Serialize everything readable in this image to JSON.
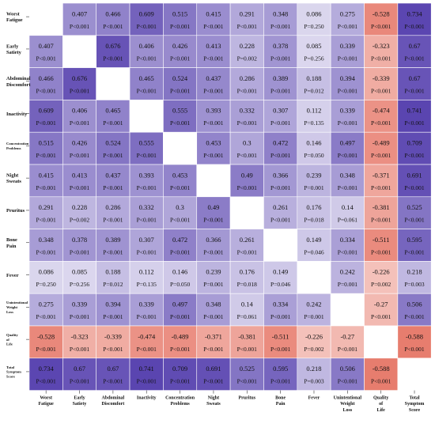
{
  "chart_data": {
    "type": "heatmap",
    "title": "",
    "variables": [
      [
        "Worst",
        "Fatigue"
      ],
      [
        "Early",
        "Satiety"
      ],
      [
        "Abdominal",
        "Discomfort"
      ],
      [
        "Inactivity"
      ],
      [
        "Concentration",
        "Problems"
      ],
      [
        "Night",
        "Sweats"
      ],
      [
        "Pruritus"
      ],
      [
        "Bone",
        "Pain"
      ],
      [
        "Fever"
      ],
      [
        "Unintentional",
        "Weight",
        "Loss"
      ],
      [
        "Quality",
        "of",
        "Life"
      ],
      [
        "Total",
        "Symptom",
        "Score"
      ]
    ],
    "coefficients": [
      [
        null,
        0.407,
        0.466,
        0.609,
        0.515,
        0.415,
        0.291,
        0.348,
        0.086,
        0.275,
        -0.528,
        0.734
      ],
      [
        0.407,
        null,
        0.676,
        0.406,
        0.426,
        0.413,
        0.228,
        0.378,
        0.085,
        0.339,
        -0.323,
        0.67
      ],
      [
        0.466,
        0.676,
        null,
        0.465,
        0.524,
        0.437,
        0.286,
        0.389,
        0.188,
        0.394,
        -0.339,
        0.67
      ],
      [
        0.609,
        0.406,
        0.465,
        null,
        0.555,
        0.393,
        0.332,
        0.307,
        0.112,
        0.339,
        -0.474,
        0.741
      ],
      [
        0.515,
        0.426,
        0.524,
        0.555,
        null,
        0.453,
        0.3,
        0.472,
        0.146,
        0.497,
        -0.489,
        0.709
      ],
      [
        0.415,
        0.413,
        0.437,
        0.393,
        0.453,
        null,
        0.49,
        0.366,
        0.239,
        0.348,
        -0.371,
        0.691
      ],
      [
        0.291,
        0.228,
        0.286,
        0.332,
        0.3,
        0.49,
        null,
        0.261,
        0.176,
        0.14,
        -0.381,
        0.525
      ],
      [
        0.348,
        0.378,
        0.389,
        0.307,
        0.472,
        0.366,
        0.261,
        null,
        0.149,
        0.334,
        -0.511,
        0.595
      ],
      [
        0.086,
        0.085,
        0.188,
        0.112,
        0.146,
        0.239,
        0.176,
        0.149,
        null,
        0.242,
        -0.226,
        0.218
      ],
      [
        0.275,
        0.339,
        0.394,
        0.339,
        0.497,
        0.348,
        0.14,
        0.334,
        0.242,
        null,
        -0.27,
        0.506
      ],
      [
        -0.528,
        -0.323,
        -0.339,
        -0.474,
        -0.489,
        -0.371,
        -0.381,
        -0.511,
        -0.226,
        -0.27,
        null,
        -0.588
      ],
      [
        0.734,
        0.67,
        0.67,
        0.741,
        0.709,
        0.691,
        0.525,
        0.595,
        0.218,
        0.506,
        -0.588,
        null
      ]
    ],
    "p_values": [
      [
        null,
        "P<0.001",
        "P<0.001",
        "P<0.001",
        "P<0.001",
        "P<0.001",
        "P<0.001",
        "P<0.001",
        "P=0.250",
        "P<0.001",
        "P<0.001",
        "P<0.001"
      ],
      [
        "P<0.001",
        null,
        "P<0.001",
        "P<0.001",
        "P<0.001",
        "P<0.001",
        "P=0.002",
        "P<0.001",
        "P=0.256",
        "P<0.001",
        "P<0.001",
        "P<0.001"
      ],
      [
        "P<0.001",
        "P<0.001",
        null,
        "P<0.001",
        "P<0.001",
        "P<0.001",
        "P<0.001",
        "P<0.001",
        "P=0.012",
        "P<0.001",
        "P<0.001",
        "P<0.001"
      ],
      [
        "P<0.001",
        "P<0.001",
        "P<0.001",
        null,
        "P<0.001",
        "P<0.001",
        "P<0.001",
        "P<0.001",
        "P=0.135",
        "P<0.001",
        "P<0.001",
        "P<0.001"
      ],
      [
        "P<0.001",
        "P<0.001",
        "P<0.001",
        "P<0.001",
        null,
        "P<0.001",
        "P<0.001",
        "P<0.001",
        "P=0.050",
        "P<0.001",
        "P<0.001",
        "P<0.001"
      ],
      [
        "P<0.001",
        "P<0.001",
        "P<0.001",
        "P<0.001",
        "P<0.001",
        null,
        "P<0.001",
        "P<0.001",
        "P=0.001",
        "P<0.001",
        "P<0.001",
        "P<0.001"
      ],
      [
        "P<0.001",
        "P=0.002",
        "P<0.001",
        "P<0.001",
        "P<0.001",
        "P<0.001",
        null,
        "P<0.001",
        "P=0.018",
        "P=0.061",
        "P<0.001",
        "P<0.001"
      ],
      [
        "P<0.001",
        "P<0.001",
        "P<0.001",
        "P<0.001",
        "P<0.001",
        "P<0.001",
        "P<0.001",
        null,
        "P=0.046",
        "P<0.001",
        "P<0.001",
        "P<0.001"
      ],
      [
        "P=0.250",
        "P=0.256",
        "P=0.012",
        "P=0.135",
        "P=0.050",
        "P=0.001",
        "P=0.018",
        "P=0.046",
        null,
        "P=0.001",
        "P=0.002",
        "P=0.003"
      ],
      [
        "P<0.001",
        "P<0.001",
        "P<0.001",
        "P<0.001",
        "P<0.001",
        "P<0.001",
        "P=0.061",
        "P<0.001",
        "P=0.001",
        null,
        "P<0.001",
        "P<0.001"
      ],
      [
        "P<0.001",
        "P<0.001",
        "P<0.001",
        "P<0.001",
        "P<0.001",
        "P<0.001",
        "P<0.001",
        "P<0.001",
        "P=0.002",
        "P<0.001",
        null,
        "P<0.001"
      ],
      [
        "P<0.001",
        "P<0.001",
        "P<0.001",
        "P<0.001",
        "P<0.001",
        "P<0.001",
        "P<0.001",
        "P<0.001",
        "P=0.003",
        "P<0.001",
        "P<0.001",
        null
      ]
    ],
    "colors": {
      "positive": "#5a45b0",
      "negative": "#e2604e",
      "diagonal": "#ffffff",
      "gridline": "#ffffff"
    },
    "legend": "none",
    "grid": true
  }
}
